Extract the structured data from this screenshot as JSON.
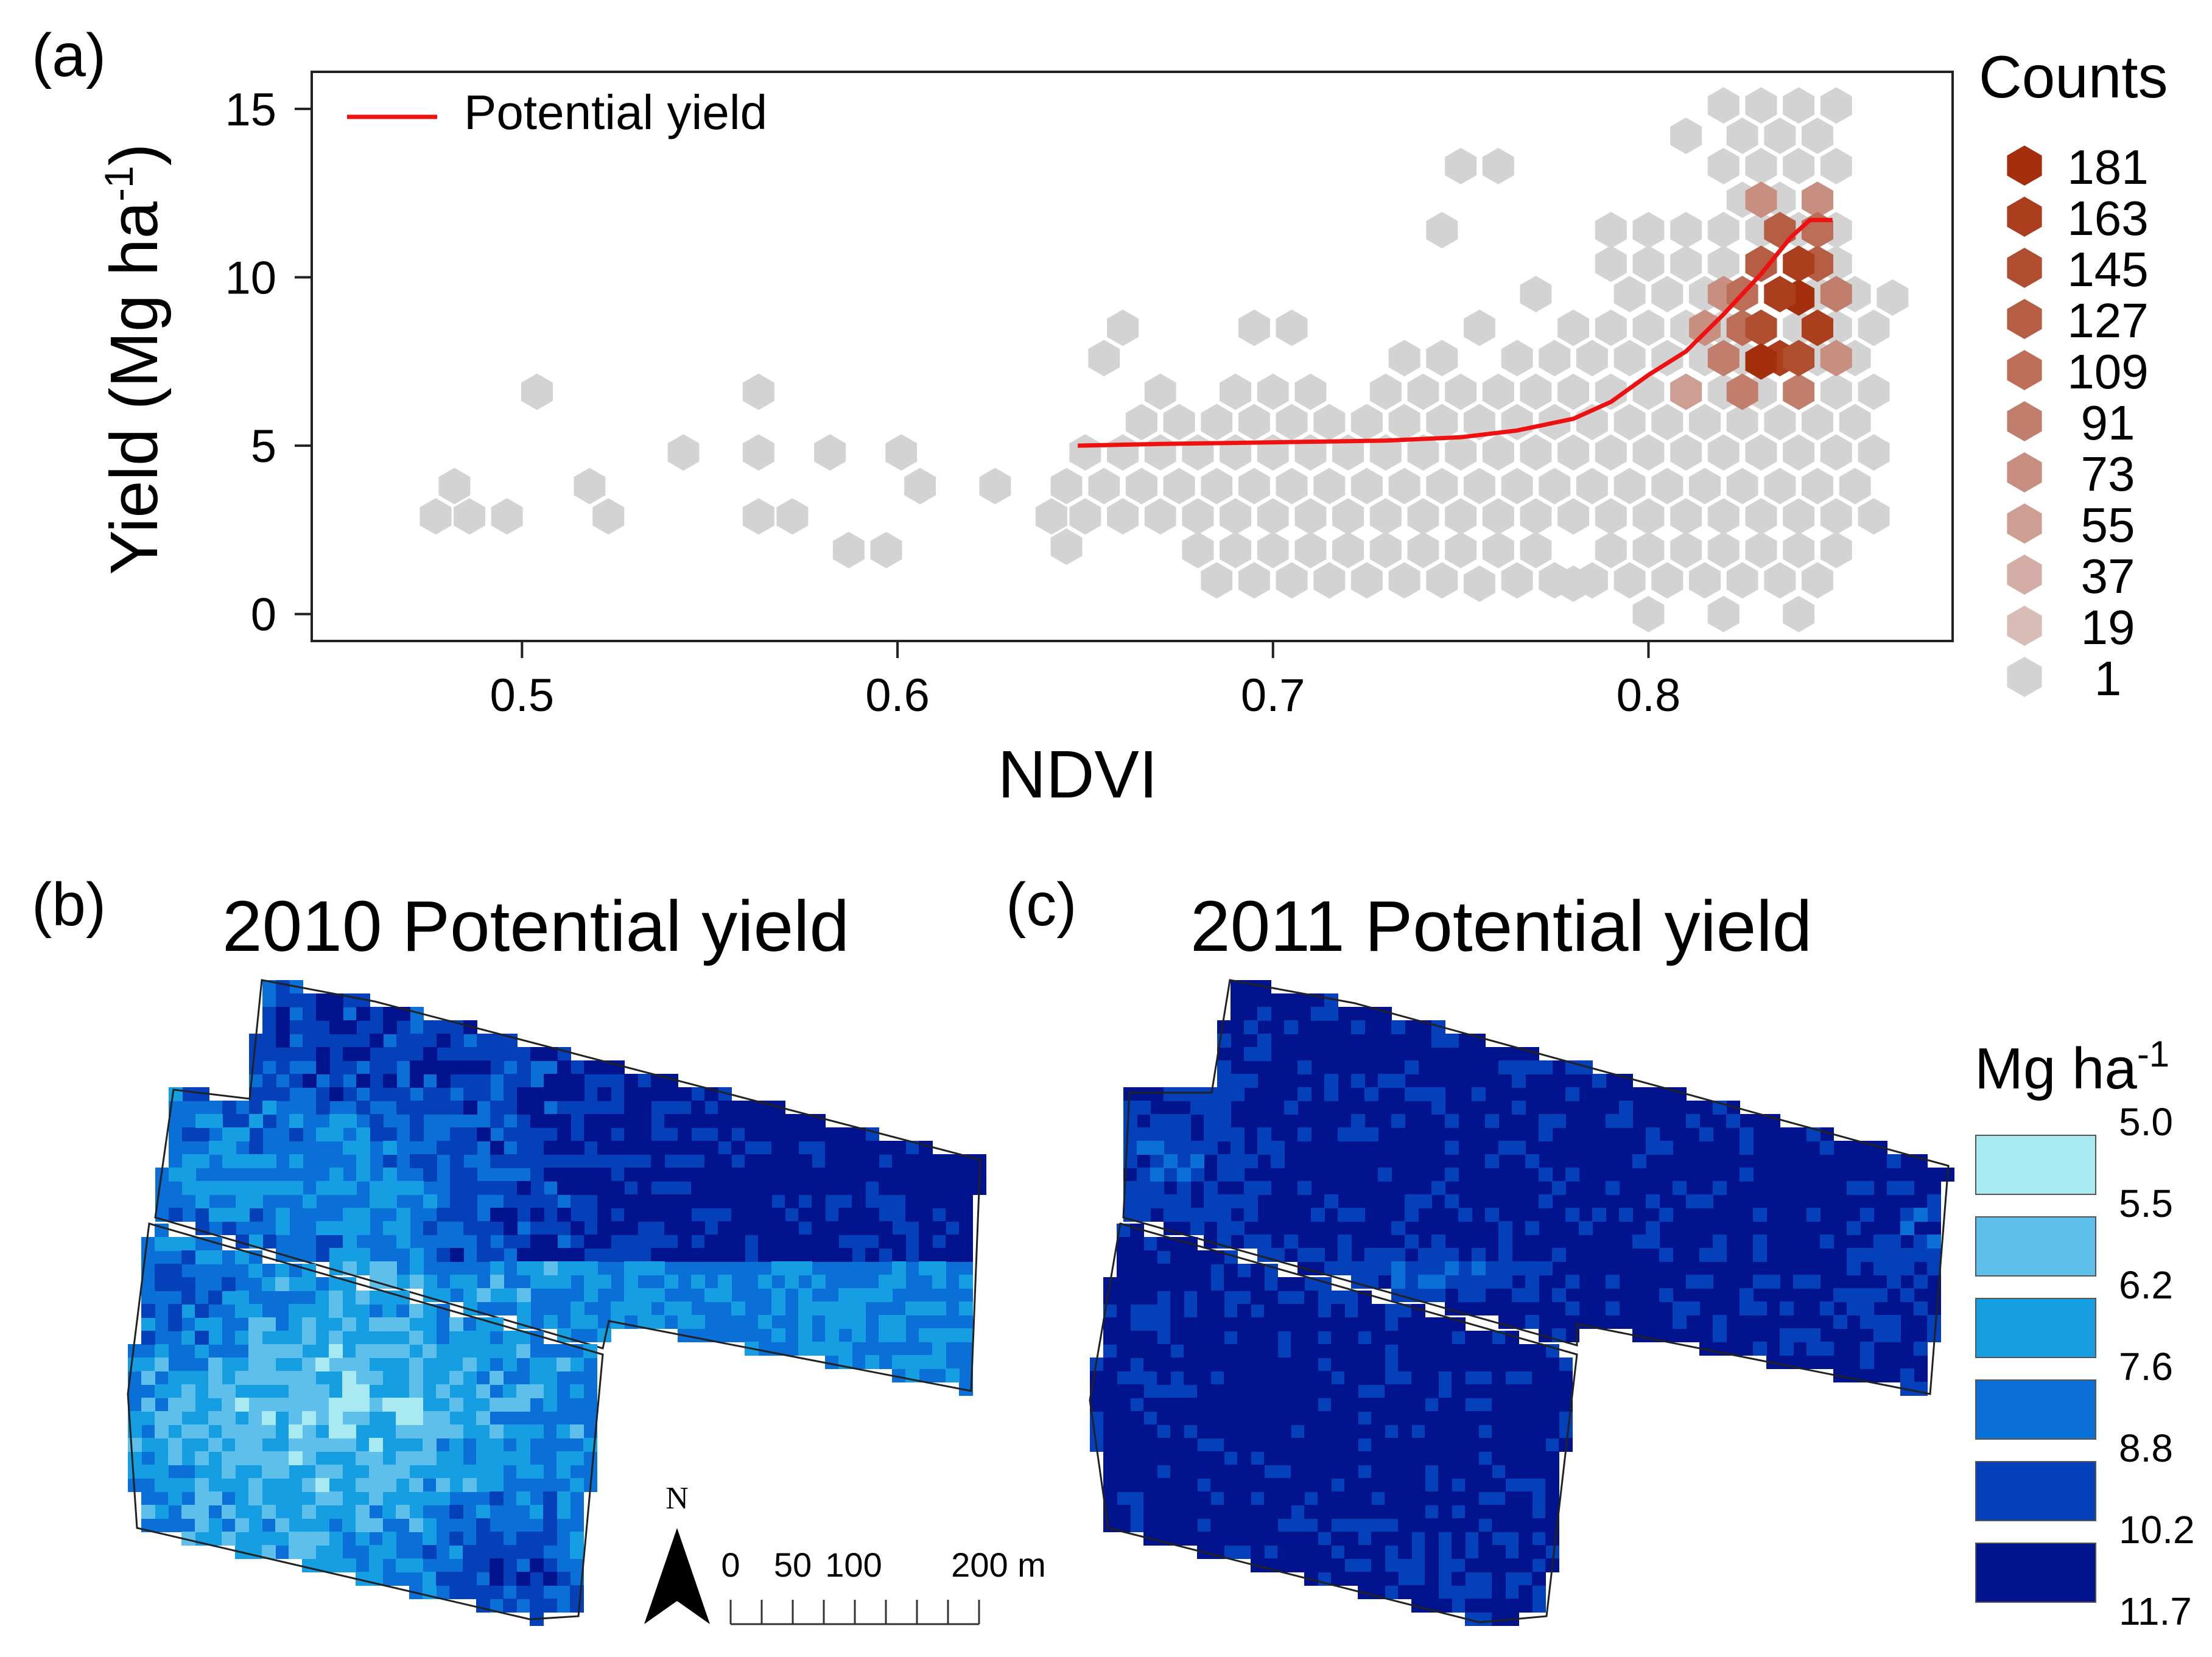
{
  "panels": {
    "a": "(a)",
    "b": "(b)",
    "c": "(c)"
  },
  "chart_data": [
    {
      "type": "scatter",
      "subtype": "hexbin",
      "xlabel": "NDVI",
      "ylabel_main": "Yield (Mg ha",
      "ylabel_sup": "-1",
      "ylabel_close": ")",
      "xlim": [
        0.444,
        0.881
      ],
      "ylim": [
        -0.8,
        16.1
      ],
      "xticks": [
        {
          "value": 0.5,
          "label": "0.5"
        },
        {
          "value": 0.6,
          "label": "0.6"
        },
        {
          "value": 0.7,
          "label": "0.7"
        },
        {
          "value": 0.8,
          "label": "0.8"
        }
      ],
      "yticks": [
        {
          "value": 0,
          "label": "0"
        },
        {
          "value": 5,
          "label": "5"
        },
        {
          "value": 10,
          "label": "10"
        },
        {
          "value": 15,
          "label": "15"
        }
      ],
      "series_name": "Potential yield",
      "series_color": "#ee1111",
      "potential_yield": {
        "x": [
          0.648,
          0.67,
          0.7,
          0.73,
          0.75,
          0.765,
          0.78,
          0.79,
          0.8,
          0.81,
          0.82,
          0.83,
          0.838,
          0.843,
          0.849
        ],
        "y": [
          5.0,
          5.05,
          5.1,
          5.15,
          5.25,
          5.45,
          5.8,
          6.3,
          7.1,
          7.8,
          8.9,
          10.1,
          11.2,
          11.7,
          11.7
        ]
      },
      "legend_title": "Counts",
      "count_bins": [
        {
          "label": "181",
          "color": "#a32f0c"
        },
        {
          "label": "163",
          "color": "#aa3e1d"
        },
        {
          "label": "145",
          "color": "#b04e30"
        },
        {
          "label": "127",
          "color": "#b65e44"
        },
        {
          "label": "109",
          "color": "#bc6e58"
        },
        {
          "label": "91",
          "color": "#c27e6c"
        },
        {
          "label": "73",
          "color": "#c88e80"
        },
        {
          "label": "55",
          "color": "#ce9e93"
        },
        {
          "label": "37",
          "color": "#d4aea6"
        },
        {
          "label": "19",
          "color": "#d9bcb6"
        },
        {
          "label": "1",
          "color": "#d3d3d3"
        }
      ],
      "hexbins": {
        "columns": [
          {
            "x": 0.477,
            "y": [
              2.9
            ]
          },
          {
            "x": 0.482,
            "y": [
              3.8
            ]
          },
          {
            "x": 0.486,
            "y": [
              2.9
            ]
          },
          {
            "x": 0.496,
            "y": [
              2.9
            ]
          },
          {
            "x": 0.504,
            "y": [
              6.6
            ]
          },
          {
            "x": 0.518,
            "y": [
              3.8
            ]
          },
          {
            "x": 0.523,
            "y": [
              2.9
            ]
          },
          {
            "x": 0.543,
            "y": [
              4.8
            ]
          },
          {
            "x": 0.563,
            "y": [
              2.9,
              4.8,
              6.6
            ]
          },
          {
            "x": 0.572,
            "y": [
              2.9
            ]
          },
          {
            "x": 0.582,
            "y": [
              4.8
            ]
          },
          {
            "x": 0.587,
            "y": [
              1.9
            ]
          },
          {
            "x": 0.597,
            "y": [
              1.9
            ]
          },
          {
            "x": 0.601,
            "y": [
              4.8
            ]
          },
          {
            "x": 0.606,
            "y": [
              3.8
            ]
          },
          {
            "x": 0.626,
            "y": [
              3.8
            ]
          },
          {
            "x": 0.641,
            "y": [
              2.9
            ]
          },
          {
            "x": 0.645,
            "y": [
              2.0,
              3.8
            ]
          },
          {
            "x": 0.65,
            "y": [
              2.9,
              4.8
            ]
          },
          {
            "x": 0.655,
            "y": [
              3.8,
              7.6
            ]
          },
          {
            "x": 0.66,
            "y": [
              2.9,
              4.8,
              8.5
            ]
          },
          {
            "x": 0.665,
            "y": [
              3.8,
              5.7
            ]
          },
          {
            "x": 0.67,
            "y": [
              2.9,
              4.8,
              6.6
            ]
          },
          {
            "x": 0.675,
            "y": [
              3.8,
              5.7
            ]
          },
          {
            "x": 0.68,
            "y": [
              1.9,
              2.9,
              4.8
            ]
          },
          {
            "x": 0.685,
            "y": [
              1.0,
              3.8,
              5.7
            ]
          },
          {
            "x": 0.69,
            "y": [
              1.9,
              2.9,
              4.8,
              6.6
            ]
          },
          {
            "x": 0.695,
            "y": [
              1.0,
              3.8,
              5.7,
              8.5
            ]
          },
          {
            "x": 0.7,
            "y": [
              1.9,
              2.9,
              4.8,
              6.6
            ]
          },
          {
            "x": 0.705,
            "y": [
              1.0,
              3.8,
              5.7,
              8.5
            ]
          },
          {
            "x": 0.71,
            "y": [
              1.9,
              2.9,
              4.8,
              6.6
            ]
          },
          {
            "x": 0.715,
            "y": [
              1.0,
              3.8,
              5.7
            ]
          },
          {
            "x": 0.72,
            "y": [
              1.9,
              2.9,
              4.8
            ]
          },
          {
            "x": 0.725,
            "y": [
              1.0,
              3.8,
              5.7
            ]
          },
          {
            "x": 0.73,
            "y": [
              1.9,
              2.9,
              4.8,
              6.6
            ]
          },
          {
            "x": 0.735,
            "y": [
              1.0,
              3.8,
              5.7,
              7.6
            ]
          },
          {
            "x": 0.74,
            "y": [
              1.9,
              2.9,
              4.8,
              6.6
            ]
          },
          {
            "x": 0.745,
            "y": [
              1.0,
              3.8,
              5.7,
              7.6,
              11.4
            ]
          },
          {
            "x": 0.75,
            "y": [
              1.9,
              2.9,
              4.8,
              6.6,
              13.3
            ]
          },
          {
            "x": 0.755,
            "y": [
              0.9,
              3.8,
              5.7,
              8.5
            ]
          },
          {
            "x": 0.76,
            "y": [
              1.9,
              2.9,
              4.8,
              6.6,
              13.3
            ]
          },
          {
            "x": 0.765,
            "y": [
              1.0,
              3.8,
              5.7,
              7.6
            ]
          },
          {
            "x": 0.77,
            "y": [
              1.9,
              2.9,
              4.8,
              6.6,
              9.5
            ]
          },
          {
            "x": 0.775,
            "y": [
              1.0,
              3.8,
              5.7,
              7.6
            ]
          },
          {
            "x": 0.78,
            "y": [
              0.9,
              2.9,
              4.8,
              6.6,
              8.5
            ]
          },
          {
            "x": 0.785,
            "y": [
              1.0,
              3.8,
              5.7,
              7.6
            ]
          },
          {
            "x": 0.79,
            "y": [
              1.9,
              2.9,
              4.8,
              6.6,
              8.5,
              10.4,
              11.4
            ]
          },
          {
            "x": 0.795,
            "y": [
              1.0,
              3.8,
              5.7,
              7.6,
              9.5
            ]
          },
          {
            "x": 0.8,
            "y": [
              0.0,
              1.9,
              2.9,
              4.8,
              6.6,
              8.5,
              10.4,
              11.4
            ]
          },
          {
            "x": 0.805,
            "y": [
              1.0,
              3.8,
              5.7,
              7.6,
              9.5
            ]
          },
          {
            "x": 0.81,
            "y": [
              1.9,
              2.9,
              4.8,
              6.6,
              8.5,
              10.4,
              11.4,
              14.2
            ]
          },
          {
            "x": 0.815,
            "y": [
              1.0,
              3.8,
              5.7,
              7.6,
              9.5
            ]
          },
          {
            "x": 0.82,
            "y": [
              0.0,
              1.9,
              2.9,
              4.8,
              6.6,
              8.5,
              10.4,
              11.4,
              13.3,
              15.1
            ]
          },
          {
            "x": 0.825,
            "y": [
              1.0,
              3.8,
              5.7,
              7.6,
              9.5,
              12.3,
              14.2
            ]
          },
          {
            "x": 0.83,
            "y": [
              1.9,
              2.9,
              4.8,
              6.6,
              8.5,
              10.4,
              11.4,
              13.3,
              15.1
            ]
          },
          {
            "x": 0.835,
            "y": [
              1.0,
              3.8,
              5.7,
              7.6,
              9.5,
              12.3,
              14.2
            ]
          },
          {
            "x": 0.84,
            "y": [
              0.0,
              1.9,
              2.9,
              4.8,
              6.6,
              8.5,
              10.4,
              11.4,
              13.3,
              15.1
            ]
          },
          {
            "x": 0.845,
            "y": [
              1.0,
              3.8,
              5.7,
              7.6,
              9.5,
              12.3,
              14.2
            ]
          },
          {
            "x": 0.85,
            "y": [
              1.9,
              2.9,
              4.8,
              6.6,
              8.5,
              10.4,
              11.4,
              13.3,
              15.1
            ]
          },
          {
            "x": 0.855,
            "y": [
              3.8,
              5.7,
              7.6,
              9.5
            ]
          },
          {
            "x": 0.86,
            "y": [
              2.9,
              4.8,
              6.6,
              8.5
            ]
          },
          {
            "x": 0.865,
            "y": [
              9.4
            ]
          }
        ],
        "highlights": [
          {
            "x": 0.83,
            "y": 7.5,
            "level": 0
          },
          {
            "x": 0.84,
            "y": 7.6,
            "level": 2
          },
          {
            "x": 0.835,
            "y": 9.5,
            "level": 1
          },
          {
            "x": 0.84,
            "y": 9.4,
            "level": 0
          },
          {
            "x": 0.845,
            "y": 8.5,
            "level": 1
          },
          {
            "x": 0.84,
            "y": 10.4,
            "level": 1
          },
          {
            "x": 0.83,
            "y": 8.5,
            "level": 2
          },
          {
            "x": 0.835,
            "y": 7.6,
            "level": 1
          },
          {
            "x": 0.845,
            "y": 10.4,
            "level": 3
          },
          {
            "x": 0.825,
            "y": 8.5,
            "level": 4
          },
          {
            "x": 0.825,
            "y": 9.5,
            "level": 4
          },
          {
            "x": 0.83,
            "y": 10.4,
            "level": 3
          },
          {
            "x": 0.835,
            "y": 11.4,
            "level": 3
          },
          {
            "x": 0.82,
            "y": 7.6,
            "level": 5
          },
          {
            "x": 0.825,
            "y": 6.6,
            "level": 5
          },
          {
            "x": 0.845,
            "y": 11.4,
            "level": 4
          },
          {
            "x": 0.85,
            "y": 9.5,
            "level": 5
          },
          {
            "x": 0.85,
            "y": 7.6,
            "level": 6
          },
          {
            "x": 0.84,
            "y": 6.6,
            "level": 5
          },
          {
            "x": 0.82,
            "y": 9.5,
            "level": 6
          },
          {
            "x": 0.815,
            "y": 8.5,
            "level": 6
          },
          {
            "x": 0.81,
            "y": 6.6,
            "level": 7
          },
          {
            "x": 0.83,
            "y": 12.3,
            "level": 6
          },
          {
            "x": 0.845,
            "y": 12.3,
            "level": 6
          }
        ]
      }
    }
  ],
  "maps": {
    "left_title": "2010 Potential yield",
    "right_title": "2011 Potential yield",
    "legend_title_main": "Mg ha",
    "legend_title_sup": "-1",
    "legend_colors": [
      "#a9e9f1",
      "#5ec0ea",
      "#159ee2",
      "#0a6fd6",
      "#0540bb",
      "#02138e"
    ],
    "legend_breaks": [
      "5.0",
      "5.5",
      "6.2",
      "7.6",
      "8.8",
      "10.2",
      "11.7"
    ]
  },
  "scale_bar": {
    "north": "N",
    "labels": [
      "0",
      "50",
      "100",
      "200 m"
    ]
  }
}
